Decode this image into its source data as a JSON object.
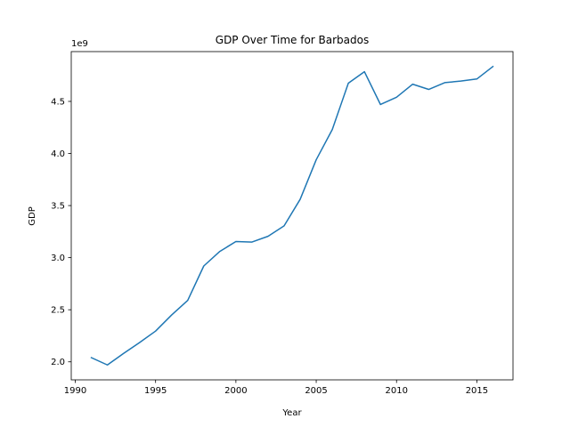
{
  "chart_data": {
    "type": "line",
    "title": "GDP Over Time for Barbados",
    "xlabel": "Year",
    "ylabel": "GDP",
    "y_offset_text": "1e9",
    "x": [
      1991,
      1992,
      1993,
      1994,
      1995,
      1996,
      1997,
      1998,
      1999,
      2000,
      2001,
      2002,
      2003,
      2004,
      2005,
      2006,
      2007,
      2008,
      2009,
      2010,
      2011,
      2012,
      2013,
      2014,
      2015,
      2016
    ],
    "series": [
      {
        "values": [
          2.04,
          1.97,
          2.08,
          2.185,
          2.295,
          2.45,
          2.59,
          2.92,
          3.06,
          3.155,
          3.15,
          3.205,
          3.305,
          3.56,
          3.94,
          4.23,
          4.675,
          4.785,
          4.47,
          4.54,
          4.665,
          4.615,
          4.68,
          4.695,
          4.715,
          4.835
        ],
        "color": "#1f77b4"
      }
    ],
    "xlim": [
      1989.75,
      2017.25
    ],
    "ylim": [
      1.827,
      4.978
    ],
    "x_ticks": [
      1990,
      1995,
      2000,
      2005,
      2010,
      2015
    ],
    "x_tick_labels": [
      "1990",
      "1995",
      "2000",
      "2005",
      "2010",
      "2015"
    ],
    "y_ticks": [
      2.0,
      2.5,
      3.0,
      3.5,
      4.0,
      4.5
    ],
    "y_tick_labels": [
      "2.0",
      "2.5",
      "3.0",
      "3.5",
      "4.0",
      "4.5"
    ],
    "grid": false,
    "legend": "none"
  }
}
